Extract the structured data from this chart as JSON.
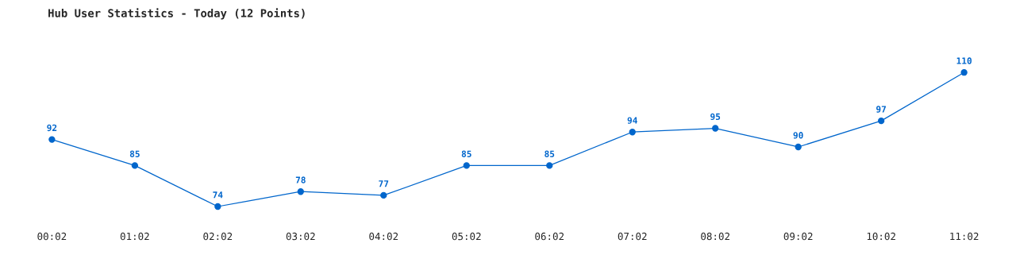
{
  "chart_data": {
    "type": "line",
    "title": "Hub User Statistics - Today (12 Points)",
    "categories": [
      "00:02",
      "01:02",
      "02:02",
      "03:02",
      "04:02",
      "05:02",
      "06:02",
      "07:02",
      "08:02",
      "09:02",
      "10:02",
      "11:02"
    ],
    "series": [
      {
        "color": "#0066cc",
        "values": [
          92,
          85,
          74,
          78,
          77,
          85,
          85,
          94,
          95,
          90,
          97,
          110
        ]
      }
    ],
    "data_labels": true,
    "marker": "circle",
    "grid": false,
    "legend": false
  }
}
